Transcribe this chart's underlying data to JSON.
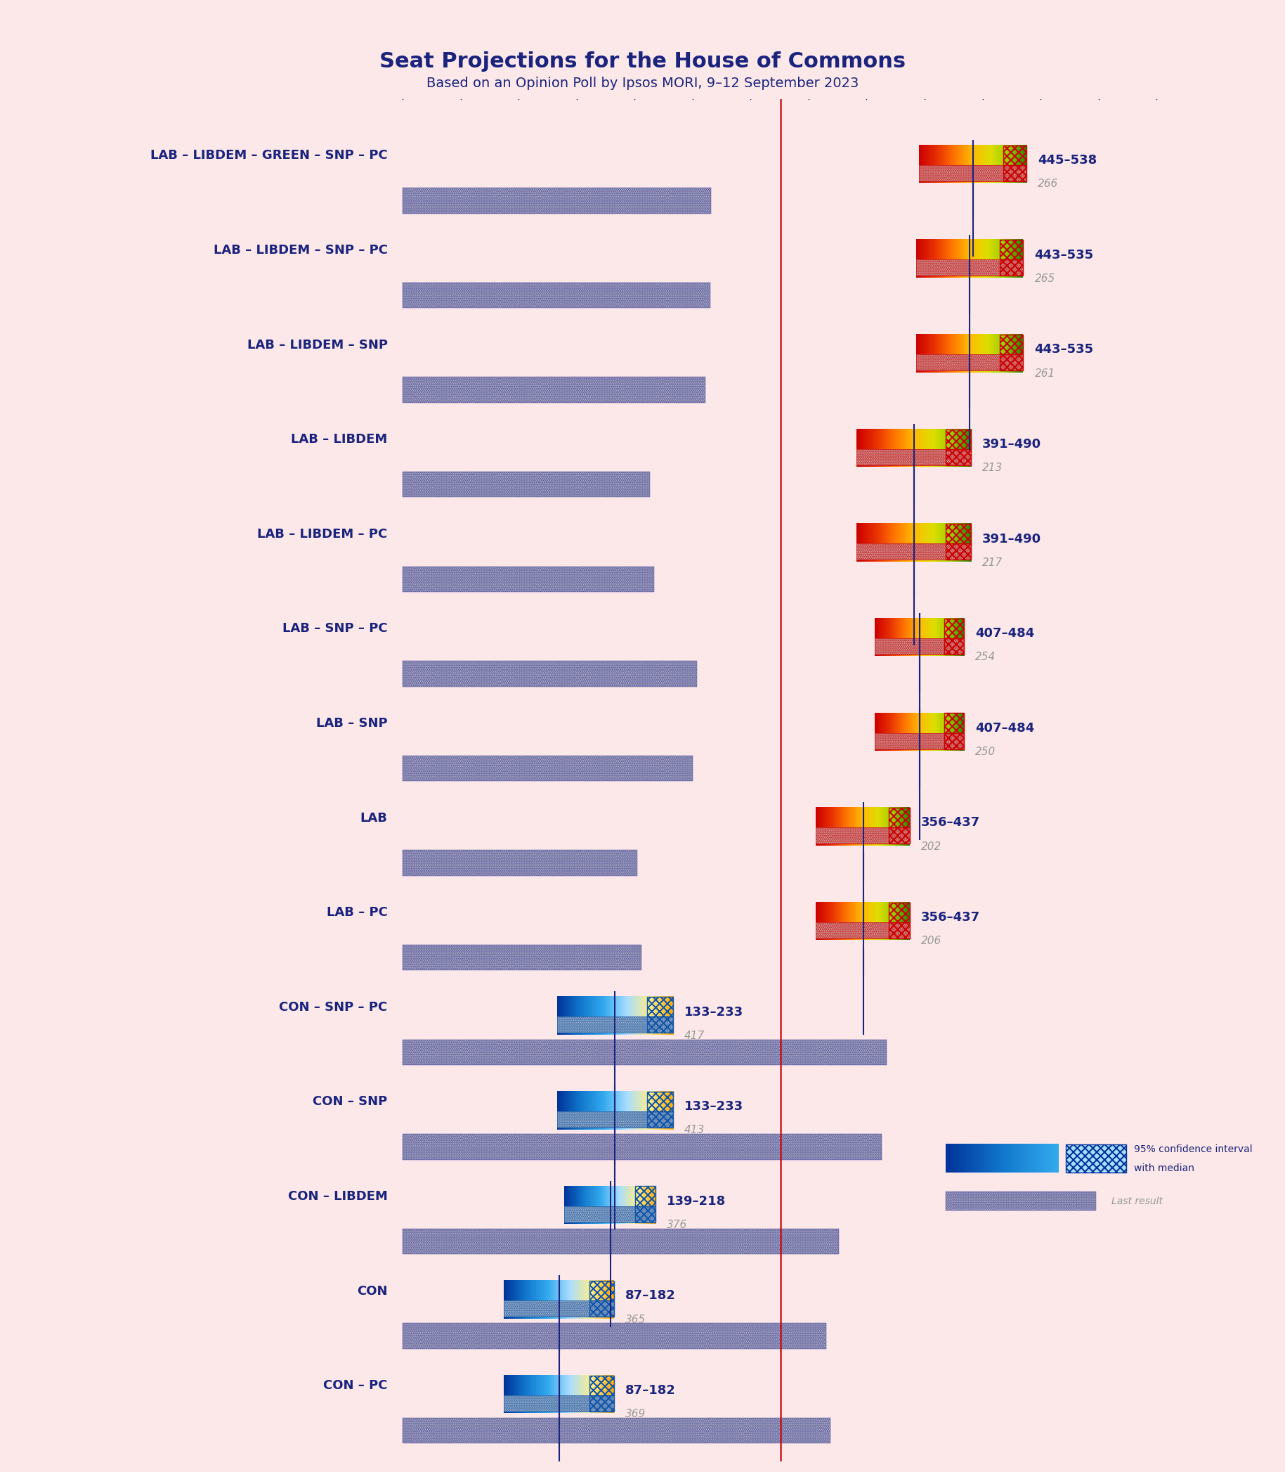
{
  "title": "Seat Projections for the House of Commons",
  "subtitle": "Based on an Opinion Poll by Ipsos MORI, 9–12 September 2023",
  "background_color": "#fce8e8",
  "title_color": "#1a237e",
  "subtitle_color": "#1a237e",
  "majority_line": 326,
  "x_max": 650,
  "coalitions": [
    {
      "label": "LAB – LIBDEM – GREEN – SNP – PC",
      "range_low": 445,
      "range_high": 538,
      "median": 492,
      "last_result": 266,
      "type": "lab_coalition"
    },
    {
      "label": "LAB – LIBDEM – SNP – PC",
      "range_low": 443,
      "range_high": 535,
      "median": 489,
      "last_result": 265,
      "type": "lab_coalition"
    },
    {
      "label": "LAB – LIBDEM – SNP",
      "range_low": 443,
      "range_high": 535,
      "median": 489,
      "last_result": 261,
      "type": "lab_coalition"
    },
    {
      "label": "LAB – LIBDEM",
      "range_low": 391,
      "range_high": 490,
      "median": 441,
      "last_result": 213,
      "type": "lab_coalition"
    },
    {
      "label": "LAB – LIBDEM – PC",
      "range_low": 391,
      "range_high": 490,
      "median": 441,
      "last_result": 217,
      "type": "lab_coalition"
    },
    {
      "label": "LAB – SNP – PC",
      "range_low": 407,
      "range_high": 484,
      "median": 446,
      "last_result": 254,
      "type": "lab_coalition"
    },
    {
      "label": "LAB – SNP",
      "range_low": 407,
      "range_high": 484,
      "median": 446,
      "last_result": 250,
      "type": "lab_coalition"
    },
    {
      "label": "LAB",
      "range_low": 356,
      "range_high": 437,
      "median": 397,
      "last_result": 202,
      "type": "lab_only"
    },
    {
      "label": "LAB – PC",
      "range_low": 356,
      "range_high": 437,
      "median": 397,
      "last_result": 206,
      "type": "lab_coalition"
    },
    {
      "label": "CON – SNP – PC",
      "range_low": 133,
      "range_high": 233,
      "median": 183,
      "last_result": 417,
      "type": "con_coalition"
    },
    {
      "label": "CON – SNP",
      "range_low": 133,
      "range_high": 233,
      "median": 183,
      "last_result": 413,
      "type": "con_coalition"
    },
    {
      "label": "CON – LIBDEM",
      "range_low": 139,
      "range_high": 218,
      "median": 179,
      "last_result": 376,
      "type": "con_coalition"
    },
    {
      "label": "CON",
      "range_low": 87,
      "range_high": 182,
      "median": 135,
      "last_result": 365,
      "type": "con_only"
    },
    {
      "label": "CON – PC",
      "range_low": 87,
      "range_high": 182,
      "median": 135,
      "last_result": 369,
      "type": "con_only"
    }
  ],
  "lab_gradient_colors": [
    "#cc0000",
    "#dd4400",
    "#ff8800",
    "#ffcc00",
    "#ccdd00",
    "#88bb00",
    "#228800",
    "#88bb00",
    "#ccdd00"
  ],
  "con_gradient_colors": [
    "#0055cc",
    "#2288dd",
    "#44aaee",
    "#88ccff",
    "#ffcc00",
    "#ff8800"
  ],
  "hatch_color_lab": "#cc0000",
  "hatch_color_con": "#1155aa",
  "dotted_pattern_color": "#aaaaaa",
  "last_result_bar_color": "#cccccc",
  "range_label_color": "#1a237e",
  "last_result_label_color": "#999999",
  "majority_line_color": "#cc0000"
}
